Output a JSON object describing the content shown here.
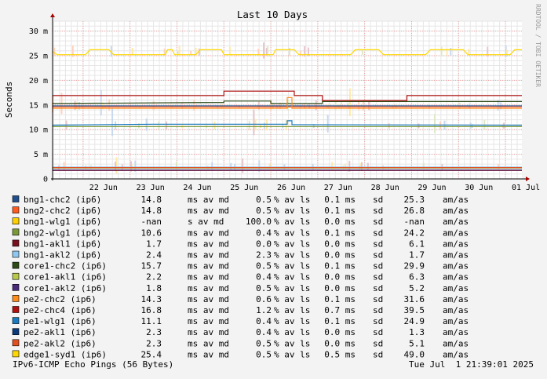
{
  "chart_data": {
    "type": "line",
    "title": "Last 10 Days",
    "ylabel": "Seconds",
    "ylim": [
      0,
      0.032
    ],
    "y_ticks": [
      {
        "value": 0,
        "label": "0"
      },
      {
        "value": 0.005,
        "label": "5 m"
      },
      {
        "value": 0.01,
        "label": "10 m"
      },
      {
        "value": 0.015,
        "label": "15 m"
      },
      {
        "value": 0.02,
        "label": "20 m"
      },
      {
        "value": 0.025,
        "label": "25 m"
      },
      {
        "value": 0.03,
        "label": "30 m"
      }
    ],
    "x_day_range": [
      21.35,
      31.35
    ],
    "x_ticks": [
      {
        "day": 22,
        "label": "22 Jun"
      },
      {
        "day": 23,
        "label": "23 Jun"
      },
      {
        "day": 24,
        "label": "24 Jun"
      },
      {
        "day": 25,
        "label": "25 Jun"
      },
      {
        "day": 26,
        "label": "26 Jun"
      },
      {
        "day": 27,
        "label": "27 Jun"
      },
      {
        "day": 28,
        "label": "28 Jun"
      },
      {
        "day": 29,
        "label": "29 Jun"
      },
      {
        "day": 30,
        "label": "30 Jun"
      },
      {
        "day": 31,
        "label": "01 Jul"
      }
    ],
    "series": [
      {
        "name": "bng1-chc2 (ip6)",
        "color": "#1f4e8c",
        "avg": "14.8",
        "unit": "ms",
        "loss": "0.5",
        "sd": "0.1 ms",
        "am": "25.3",
        "points": [
          [
            21.35,
            0.0148
          ],
          [
            31.35,
            0.0148
          ]
        ]
      },
      {
        "name": "bng2-chc2 (ip6)",
        "color": "#ff5a1f",
        "avg": "14.8",
        "unit": "ms",
        "loss": "0.5",
        "sd": "0.1 ms",
        "am": "26.8",
        "points": [
          [
            21.35,
            0.0146
          ],
          [
            31.35,
            0.0146
          ]
        ]
      },
      {
        "name": "bng1-wlg1 (ip6)",
        "color": "#ffd000",
        "avg": "-nan",
        "unit": " s",
        "loss": "100.0",
        "sd": "0.0 ms",
        "am": "-nan",
        "points": []
      },
      {
        "name": "bng2-wlg1 (ip6)",
        "color": "#7a9a3a",
        "avg": "10.6",
        "unit": "ms",
        "loss": "0.4",
        "sd": "0.1 ms",
        "am": "24.2",
        "points": [
          [
            21.35,
            0.0106
          ],
          [
            31.35,
            0.0106
          ]
        ]
      },
      {
        "name": "bng1-akl1 (ip6)",
        "color": "#7a0f1e",
        "avg": "1.7",
        "unit": "ms",
        "loss": "0.0",
        "sd": "0.0 ms",
        "am": "6.1",
        "points": [
          [
            21.35,
            0.0017
          ],
          [
            31.35,
            0.0017
          ]
        ]
      },
      {
        "name": "bng1-akl2 (ip6)",
        "color": "#8ec8f0",
        "avg": "2.4",
        "unit": "ms",
        "loss": "2.3",
        "sd": "0.0 ms",
        "am": "1.7",
        "points": [
          [
            21.35,
            0.0024
          ],
          [
            31.35,
            0.0024
          ]
        ]
      },
      {
        "name": "core1-chc2 (ip6)",
        "color": "#2d4a18",
        "avg": "15.7",
        "unit": "ms",
        "loss": "0.5",
        "sd": "0.1 ms",
        "am": "29.9",
        "points": [
          [
            21.35,
            0.0153
          ],
          [
            25.0,
            0.0155
          ],
          [
            25.0,
            0.0158
          ],
          [
            26.0,
            0.0158
          ],
          [
            26.0,
            0.0153
          ],
          [
            27.1,
            0.0153
          ],
          [
            27.1,
            0.0157
          ],
          [
            31.35,
            0.0157
          ]
        ]
      },
      {
        "name": "core1-akl1 (ip6)",
        "color": "#b8c84a",
        "avg": "2.2",
        "unit": "ms",
        "loss": "0.4",
        "sd": "0.0 ms",
        "am": "6.3",
        "points": [
          [
            21.35,
            0.0022
          ],
          [
            31.35,
            0.0022
          ]
        ]
      },
      {
        "name": "core1-akl2 (ip6)",
        "color": "#4a2a7a",
        "avg": "1.8",
        "unit": "ms",
        "loss": "0.5",
        "sd": "0.0 ms",
        "am": "5.2",
        "points": [
          [
            21.35,
            0.0018
          ],
          [
            31.35,
            0.0018
          ]
        ]
      },
      {
        "name": "pe2-chc2 (ip6)",
        "color": "#ff8c1a",
        "avg": "14.3",
        "unit": "ms",
        "loss": "0.6",
        "sd": "0.1 ms",
        "am": "31.6",
        "points": [
          [
            21.35,
            0.0143
          ],
          [
            26.35,
            0.0143
          ],
          [
            26.35,
            0.0165
          ],
          [
            26.45,
            0.0165
          ],
          [
            26.45,
            0.0143
          ],
          [
            31.35,
            0.0143
          ]
        ]
      },
      {
        "name": "pe2-chc4 (ip6)",
        "color": "#b01010",
        "avg": "16.8",
        "unit": "ms",
        "loss": "1.2",
        "sd": "0.7 ms",
        "am": "39.5",
        "points": [
          [
            21.35,
            0.0169
          ],
          [
            25.0,
            0.0169
          ],
          [
            25.0,
            0.0178
          ],
          [
            26.5,
            0.0178
          ],
          [
            26.5,
            0.0169
          ],
          [
            27.1,
            0.0169
          ],
          [
            27.1,
            0.0159
          ],
          [
            28.9,
            0.0159
          ],
          [
            28.9,
            0.0169
          ],
          [
            31.35,
            0.0169
          ]
        ]
      },
      {
        "name": "pe1-wlg1 (ip6)",
        "color": "#1a7ac0",
        "avg": "11.1",
        "unit": "ms",
        "loss": "0.4",
        "sd": "0.1 ms",
        "am": "24.9",
        "points": [
          [
            21.35,
            0.0109
          ],
          [
            23.5,
            0.0111
          ],
          [
            26.35,
            0.0111
          ],
          [
            26.35,
            0.0118
          ],
          [
            26.45,
            0.0118
          ],
          [
            26.45,
            0.011
          ],
          [
            31.35,
            0.0109
          ]
        ]
      },
      {
        "name": "pe2-akl1 (ip6)",
        "color": "#0a3a7a",
        "avg": "2.3",
        "unit": "ms",
        "loss": "0.4",
        "sd": "0.0 ms",
        "am": "1.3",
        "points": [
          [
            21.35,
            0.0023
          ],
          [
            31.35,
            0.0023
          ]
        ]
      },
      {
        "name": "pe2-akl2 (ip6)",
        "color": "#e05020",
        "avg": "2.3",
        "unit": "ms",
        "loss": "0.5",
        "sd": "0.0 ms",
        "am": "5.1",
        "points": [
          [
            21.35,
            0.0023
          ],
          [
            31.35,
            0.0023
          ]
        ]
      },
      {
        "name": "edge1-syd1 (ip6)",
        "color": "#ffd700",
        "avg": "25.4",
        "unit": "ms",
        "loss": "0.5",
        "sd": "0.5 ms",
        "am": "49.0",
        "points": [
          [
            21.35,
            0.0258
          ],
          [
            21.45,
            0.0252
          ],
          [
            22.05,
            0.0252
          ],
          [
            22.15,
            0.0262
          ],
          [
            22.55,
            0.0262
          ],
          [
            22.65,
            0.0252
          ],
          [
            23.75,
            0.0252
          ],
          [
            23.8,
            0.0262
          ],
          [
            23.9,
            0.0262
          ],
          [
            23.95,
            0.0252
          ],
          [
            24.4,
            0.0252
          ],
          [
            24.5,
            0.0262
          ],
          [
            24.95,
            0.0262
          ],
          [
            25.0,
            0.0252
          ],
          [
            26.05,
            0.0252
          ],
          [
            26.1,
            0.0262
          ],
          [
            26.5,
            0.0262
          ],
          [
            26.6,
            0.0252
          ],
          [
            27.7,
            0.0252
          ],
          [
            27.8,
            0.0262
          ],
          [
            28.3,
            0.0262
          ],
          [
            28.4,
            0.0252
          ],
          [
            29.3,
            0.0252
          ],
          [
            29.4,
            0.0262
          ],
          [
            30.1,
            0.0262
          ],
          [
            30.2,
            0.0252
          ],
          [
            31.1,
            0.0252
          ],
          [
            31.2,
            0.0262
          ],
          [
            31.35,
            0.0262
          ]
        ]
      }
    ],
    "legend_units": {
      "avg_suffix": "av md",
      "loss_suffix": "% av ls",
      "sd_suffix": "sd",
      "am_suffix": "am/as"
    },
    "grid": true,
    "legend_placement": "bottom"
  },
  "footer": {
    "left": "IPv6-ICMP Echo Pings (56 Bytes)",
    "right": "Tue Jul  1 21:39:01 2025"
  },
  "watermark": "RRDTOOL / TOBI OETIKER"
}
